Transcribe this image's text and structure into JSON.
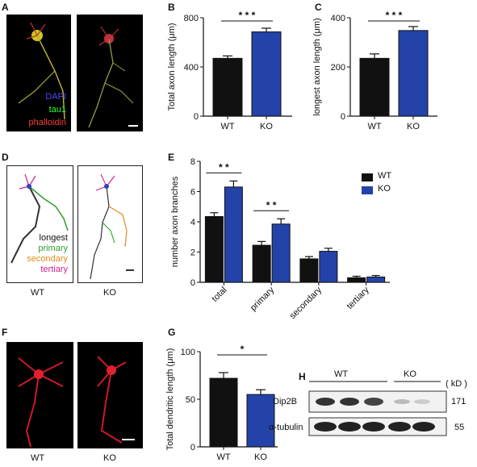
{
  "panels": {
    "A": {
      "letter": "A",
      "labels": {
        "dapi": "DAPI",
        "tau1": "tau1",
        "phalloidin": "phalloidin"
      },
      "colors": {
        "dapi": "#3b3bff",
        "tau1": "#33ff33",
        "phalloidin": "#ff3030"
      }
    },
    "D": {
      "letter": "D",
      "labels": {
        "longest": "longest",
        "primary": "primary",
        "secondary": "secondary",
        "tertiary": "tertiary"
      },
      "colors": {
        "longest": "#111111",
        "primary": "#2e9e2e",
        "secondary": "#e08a1e",
        "tertiary": "#d0208a"
      },
      "captions": {
        "wt": "WT",
        "ko": "KO"
      }
    },
    "F": {
      "letter": "F",
      "captions": {
        "wt": "WT",
        "ko": "KO"
      }
    },
    "H": {
      "letter": "H",
      "groups": {
        "wt": "WT",
        "ko": "KO"
      },
      "kd": "( kD )",
      "rows": [
        {
          "name": "Dip2B",
          "kd": "171"
        },
        {
          "name": "α-tubulin",
          "kd": "55"
        }
      ]
    }
  },
  "colors": {
    "wt": "#111111",
    "ko": "#2343a8"
  },
  "chart_data": [
    {
      "id": "B",
      "letter": "B",
      "type": "bar",
      "categories": [
        "WT",
        "KO"
      ],
      "values": [
        470,
        685
      ],
      "errors": [
        20,
        30
      ],
      "ylabel": "Total axon length (μm)",
      "ylim": [
        0,
        800
      ],
      "yticks": [
        0,
        400,
        800
      ],
      "significance": "* * *"
    },
    {
      "id": "C",
      "letter": "C",
      "type": "bar",
      "categories": [
        "WT",
        "KO"
      ],
      "values": [
        235,
        348
      ],
      "errors": [
        18,
        16
      ],
      "ylabel": "longest axon length (μm)",
      "ylim": [
        0,
        400
      ],
      "yticks": [
        0,
        200,
        400
      ],
      "significance": "* * *"
    },
    {
      "id": "E",
      "letter": "E",
      "type": "bar",
      "categories": [
        "total",
        "primary",
        "secondary",
        "tertiary"
      ],
      "ylabel": "number axon branches",
      "ylim": [
        0,
        8
      ],
      "yticks": [
        0,
        2,
        4,
        6,
        8
      ],
      "series": [
        {
          "name": "WT",
          "values": [
            4.35,
            2.45,
            1.55,
            0.3
          ],
          "errors": [
            0.25,
            0.25,
            0.15,
            0.1
          ]
        },
        {
          "name": "KO",
          "values": [
            6.3,
            3.85,
            2.05,
            0.35
          ],
          "errors": [
            0.4,
            0.35,
            0.2,
            0.1
          ]
        }
      ],
      "significance": [
        {
          "category": "total",
          "label": "* *"
        },
        {
          "category": "primary",
          "label": "* *"
        }
      ],
      "legend": "top-right"
    },
    {
      "id": "G",
      "letter": "G",
      "type": "bar",
      "categories": [
        "WT",
        "KO"
      ],
      "values": [
        72,
        55
      ],
      "errors": [
        6,
        5
      ],
      "ylabel": "Total dendritic length (μm)",
      "ylim": [
        0,
        100
      ],
      "yticks": [
        0,
        50,
        100
      ],
      "significance": "*"
    }
  ]
}
